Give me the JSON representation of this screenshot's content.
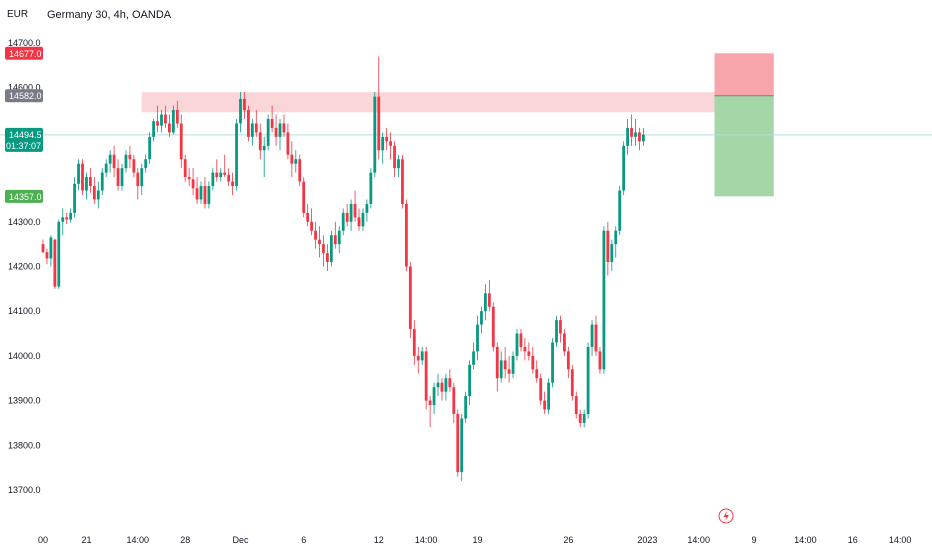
{
  "header": {
    "currency": "EUR",
    "title": "Germany 30, 4h, OANDA"
  },
  "chart_data": {
    "type": "candlestick",
    "symbol": "Germany 30",
    "timeframe": "4h",
    "source": "OANDA",
    "currency": "EUR",
    "ylim": [
      13640,
      14760
    ],
    "y_ticks": [
      14700,
      14600,
      14300,
      14200,
      14100,
      14000,
      13900,
      13800,
      13700
    ],
    "y_tick_labels": [
      "14700.0",
      "14600.0",
      "14300.0",
      "14200.0",
      "14100.0",
      "14000.0",
      "13900.0",
      "13800.0",
      "13700.0"
    ],
    "x_ticks": [
      {
        "label": "00",
        "bar": 0
      },
      {
        "label": "21",
        "bar": 11
      },
      {
        "label": "14:00",
        "bar": 24
      },
      {
        "label": "28",
        "bar": 36
      },
      {
        "label": "Dec",
        "bar": 50
      },
      {
        "label": "6",
        "bar": 66
      },
      {
        "label": "12",
        "bar": 85
      },
      {
        "label": "14:00",
        "bar": 97
      },
      {
        "label": "19",
        "bar": 110
      },
      {
        "label": "26",
        "bar": 133
      },
      {
        "label": "2023",
        "bar": 153
      },
      {
        "label": "14:00",
        "bar": 166
      },
      {
        "label": "9",
        "bar": 180
      },
      {
        "label": "14:00",
        "bar": 193
      },
      {
        "label": "16",
        "bar": 205
      },
      {
        "label": "14:00",
        "bar": 217
      }
    ],
    "price_labels": [
      {
        "value": 14677.0,
        "text": "14677.0",
        "color": "#f23645"
      },
      {
        "value": 14582.0,
        "text": "14582.0",
        "color": "#787b86"
      },
      {
        "value": 14494.5,
        "text": "14494.5",
        "sub": "01:37:07",
        "color": "#089981"
      },
      {
        "value": 14357.0,
        "text": "14357.0",
        "color": "#4caf50"
      }
    ],
    "resistance_zone": {
      "from_bar": 25,
      "to_bar": 170,
      "low": 14545,
      "high": 14590
    },
    "position": {
      "from_bar": 170,
      "to_bar": 185,
      "entry": 14582,
      "stop": 14677,
      "target": 14357
    },
    "last_price": 14494.5,
    "colors": {
      "up": "#089981",
      "down": "#f23645",
      "zone": "#f8bbc0",
      "stop_fill": "#f7a4ab",
      "target_fill": "#a5d6a7",
      "last_line": "#b2dfdb"
    },
    "candles": [
      [
        14250,
        14260,
        14230,
        14232
      ],
      [
        14232,
        14240,
        14205,
        14218
      ],
      [
        14218,
        14270,
        14200,
        14265
      ],
      [
        14260,
        14262,
        14150,
        14155
      ],
      [
        14155,
        14305,
        14150,
        14300
      ],
      [
        14300,
        14330,
        14270,
        14310
      ],
      [
        14310,
        14320,
        14295,
        14305
      ],
      [
        14305,
        14330,
        14298,
        14320
      ],
      [
        14320,
        14400,
        14310,
        14385
      ],
      [
        14385,
        14440,
        14370,
        14430
      ],
      [
        14430,
        14440,
        14360,
        14370
      ],
      [
        14370,
        14410,
        14350,
        14400
      ],
      [
        14400,
        14420,
        14365,
        14380
      ],
      [
        14380,
        14400,
        14340,
        14350
      ],
      [
        14350,
        14390,
        14330,
        14370
      ],
      [
        14370,
        14420,
        14360,
        14410
      ],
      [
        14410,
        14440,
        14400,
        14430
      ],
      [
        14430,
        14460,
        14410,
        14450
      ],
      [
        14450,
        14470,
        14400,
        14420
      ],
      [
        14420,
        14440,
        14370,
        14380
      ],
      [
        14380,
        14430,
        14370,
        14420
      ],
      [
        14420,
        14460,
        14410,
        14450
      ],
      [
        14450,
        14470,
        14420,
        14440
      ],
      [
        14440,
        14450,
        14400,
        14410
      ],
      [
        14410,
        14420,
        14350,
        14380
      ],
      [
        14380,
        14430,
        14360,
        14420
      ],
      [
        14420,
        14450,
        14410,
        14440
      ],
      [
        14440,
        14500,
        14430,
        14490
      ],
      [
        14490,
        14530,
        14480,
        14525
      ],
      [
        14525,
        14560,
        14500,
        14515
      ],
      [
        14515,
        14550,
        14500,
        14540
      ],
      [
        14540,
        14560,
        14510,
        14520
      ],
      [
        14520,
        14540,
        14490,
        14500
      ],
      [
        14500,
        14560,
        14495,
        14550
      ],
      [
        14550,
        14570,
        14510,
        14520
      ],
      [
        14520,
        14540,
        14420,
        14440
      ],
      [
        14440,
        14450,
        14390,
        14400
      ],
      [
        14400,
        14420,
        14380,
        14395
      ],
      [
        14395,
        14420,
        14360,
        14375
      ],
      [
        14375,
        14400,
        14340,
        14350
      ],
      [
        14350,
        14390,
        14340,
        14380
      ],
      [
        14380,
        14400,
        14330,
        14340
      ],
      [
        14340,
        14390,
        14330,
        14380
      ],
      [
        14380,
        14420,
        14370,
        14410
      ],
      [
        14410,
        14440,
        14390,
        14400
      ],
      [
        14400,
        14420,
        14390,
        14410
      ],
      [
        14410,
        14450,
        14400,
        14405
      ],
      [
        14405,
        14420,
        14380,
        14390
      ],
      [
        14390,
        14410,
        14360,
        14380
      ],
      [
        14380,
        14530,
        14370,
        14520
      ],
      [
        14520,
        14590,
        14500,
        14575
      ],
      [
        14575,
        14590,
        14530,
        14550
      ],
      [
        14550,
        14560,
        14480,
        14490
      ],
      [
        14490,
        14530,
        14470,
        14520
      ],
      [
        14520,
        14550,
        14490,
        14500
      ],
      [
        14500,
        14520,
        14440,
        14460
      ],
      [
        14460,
        14490,
        14400,
        14470
      ],
      [
        14470,
        14540,
        14460,
        14530
      ],
      [
        14530,
        14560,
        14500,
        14510
      ],
      [
        14510,
        14540,
        14470,
        14490
      ],
      [
        14490,
        14530,
        14460,
        14520
      ],
      [
        14520,
        14540,
        14490,
        14500
      ],
      [
        14500,
        14520,
        14440,
        14450
      ],
      [
        14450,
        14480,
        14400,
        14430
      ],
      [
        14430,
        14460,
        14410,
        14440
      ],
      [
        14440,
        14450,
        14380,
        14390
      ],
      [
        14390,
        14400,
        14310,
        14320
      ],
      [
        14320,
        14340,
        14290,
        14300
      ],
      [
        14300,
        14330,
        14270,
        14280
      ],
      [
        14280,
        14300,
        14240,
        14260
      ],
      [
        14260,
        14290,
        14220,
        14250
      ],
      [
        14250,
        14270,
        14200,
        14230
      ],
      [
        14230,
        14250,
        14190,
        14210
      ],
      [
        14210,
        14280,
        14200,
        14270
      ],
      [
        14270,
        14300,
        14240,
        14250
      ],
      [
        14250,
        14290,
        14230,
        14280
      ],
      [
        14280,
        14330,
        14270,
        14320
      ],
      [
        14320,
        14340,
        14290,
        14300
      ],
      [
        14300,
        14350,
        14280,
        14340
      ],
      [
        14340,
        14370,
        14300,
        14310
      ],
      [
        14310,
        14330,
        14280,
        14290
      ],
      [
        14290,
        14330,
        14280,
        14320
      ],
      [
        14320,
        14350,
        14300,
        14340
      ],
      [
        14340,
        14420,
        14330,
        14410
      ],
      [
        14410,
        14590,
        14400,
        14580
      ],
      [
        14580,
        14670,
        14440,
        14460
      ],
      [
        14460,
        14500,
        14430,
        14490
      ],
      [
        14490,
        14510,
        14460,
        14480
      ],
      [
        14480,
        14500,
        14440,
        14470
      ],
      [
        14470,
        14480,
        14400,
        14420
      ],
      [
        14420,
        14450,
        14400,
        14440
      ],
      [
        14440,
        14450,
        14330,
        14340
      ],
      [
        14340,
        14350,
        14190,
        14200
      ],
      [
        14200,
        14210,
        14040,
        14060
      ],
      [
        14060,
        14080,
        13980,
        14000
      ],
      [
        14000,
        14020,
        13960,
        13990
      ],
      [
        13990,
        14020,
        13980,
        14010
      ],
      [
        14010,
        14020,
        13880,
        13900
      ],
      [
        13900,
        13910,
        13840,
        13890
      ],
      [
        13890,
        13940,
        13870,
        13930
      ],
      [
        13930,
        13960,
        13910,
        13940
      ],
      [
        13940,
        13950,
        13900,
        13920
      ],
      [
        13920,
        13960,
        13900,
        13950
      ],
      [
        13950,
        13970,
        13920,
        13930
      ],
      [
        13930,
        13940,
        13850,
        13870
      ],
      [
        13870,
        13880,
        13730,
        13740
      ],
      [
        13740,
        13870,
        13720,
        13860
      ],
      [
        13860,
        13920,
        13850,
        13910
      ],
      [
        13910,
        13990,
        13890,
        13980
      ],
      [
        13980,
        14030,
        13970,
        14010
      ],
      [
        14010,
        14090,
        13990,
        14070
      ],
      [
        14070,
        14110,
        14050,
        14100
      ],
      [
        14100,
        14160,
        14080,
        14140
      ],
      [
        14140,
        14170,
        14100,
        14110
      ],
      [
        14110,
        14120,
        14010,
        14020
      ],
      [
        14020,
        14030,
        13920,
        13950
      ],
      [
        13950,
        14010,
        13940,
        13990
      ],
      [
        13990,
        14020,
        13950,
        13970
      ],
      [
        13970,
        14000,
        13940,
        13960
      ],
      [
        13960,
        14010,
        13950,
        14000
      ],
      [
        14000,
        14060,
        13990,
        14050
      ],
      [
        14050,
        14060,
        14010,
        14020
      ],
      [
        14020,
        14040,
        13990,
        14010
      ],
      [
        14010,
        14030,
        13990,
        14000
      ],
      [
        14000,
        14020,
        13960,
        13970
      ],
      [
        13970,
        13990,
        13940,
        13950
      ],
      [
        13950,
        13960,
        13890,
        13900
      ],
      [
        13900,
        13920,
        13870,
        13880
      ],
      [
        13880,
        13950,
        13870,
        13940
      ],
      [
        13940,
        14040,
        13930,
        14030
      ],
      [
        14030,
        14090,
        14020,
        14080
      ],
      [
        14080,
        14090,
        14030,
        14050
      ],
      [
        14050,
        14060,
        14000,
        14010
      ],
      [
        14010,
        14020,
        13950,
        13970
      ],
      [
        13970,
        13980,
        13900,
        13910
      ],
      [
        13910,
        13920,
        13860,
        13870
      ],
      [
        13870,
        13880,
        13840,
        13850
      ],
      [
        13850,
        13880,
        13840,
        13870
      ],
      [
        13870,
        14030,
        13860,
        14020
      ],
      [
        14020,
        14080,
        14000,
        14070
      ],
      [
        14070,
        14090,
        14000,
        14010
      ],
      [
        14010,
        14020,
        13960,
        13970
      ],
      [
        13970,
        14290,
        13960,
        14280
      ],
      [
        14280,
        14300,
        14180,
        14210
      ],
      [
        14210,
        14260,
        14190,
        14250
      ],
      [
        14250,
        14290,
        14220,
        14280
      ],
      [
        14280,
        14380,
        14270,
        14370
      ],
      [
        14370,
        14480,
        14360,
        14470
      ],
      [
        14470,
        14530,
        14450,
        14510
      ],
      [
        14510,
        14540,
        14470,
        14490
      ],
      [
        14490,
        14530,
        14470,
        14500
      ],
      [
        14500,
        14510,
        14460,
        14480
      ],
      [
        14480,
        14510,
        14470,
        14495
      ]
    ]
  }
}
